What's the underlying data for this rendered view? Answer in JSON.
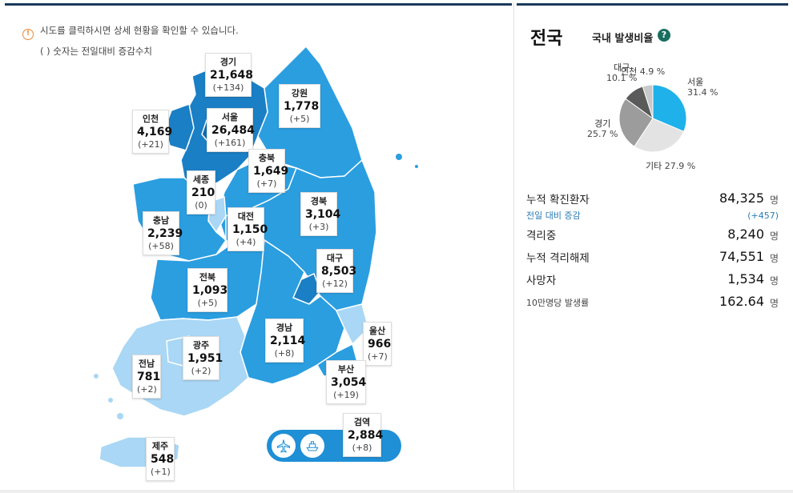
{
  "notice": {
    "line1": "시도를 클릭하시면 상세 현황을 확인할 수 있습니다.",
    "line2": "( ) 숫자는 전일대비 증감수치",
    "icon": "info-icon"
  },
  "regions": [
    {
      "id": "gyeonggi",
      "name": "경기",
      "count": "21,648",
      "diff": "(+134)"
    },
    {
      "id": "gangwon",
      "name": "강원",
      "count": "1,778",
      "diff": "(+5)"
    },
    {
      "id": "incheon",
      "name": "인천",
      "count": "4,169",
      "diff": "(+21)"
    },
    {
      "id": "seoul",
      "name": "서울",
      "count": "26,484",
      "diff": "(+161)"
    },
    {
      "id": "chungbuk",
      "name": "충북",
      "count": "1,649",
      "diff": "(+7)"
    },
    {
      "id": "sejong",
      "name": "세종",
      "count": "210",
      "diff": "(0)"
    },
    {
      "id": "chungnam",
      "name": "충남",
      "count": "2,239",
      "diff": "(+58)"
    },
    {
      "id": "daejeon",
      "name": "대전",
      "count": "1,150",
      "diff": "(+4)"
    },
    {
      "id": "gyeongbuk",
      "name": "경북",
      "count": "3,104",
      "diff": "(+3)"
    },
    {
      "id": "daegu",
      "name": "대구",
      "count": "8,503",
      "diff": "(+12)"
    },
    {
      "id": "jeonbuk",
      "name": "전북",
      "count": "1,093",
      "diff": "(+5)"
    },
    {
      "id": "ulsan",
      "name": "울산",
      "count": "966",
      "diff": "(+7)"
    },
    {
      "id": "gyeongnam",
      "name": "경남",
      "count": "2,114",
      "diff": "(+8)"
    },
    {
      "id": "gwangju",
      "name": "광주",
      "count": "1,951",
      "diff": "(+2)"
    },
    {
      "id": "jeonnam",
      "name": "전남",
      "count": "781",
      "diff": "(+2)"
    },
    {
      "id": "busan",
      "name": "부산",
      "count": "3,054",
      "diff": "(+19)"
    },
    {
      "id": "quarantine",
      "name": "검역",
      "count": "2,884",
      "diff": "(+8)"
    },
    {
      "id": "jeju",
      "name": "제주",
      "count": "548",
      "diff": "(+1)"
    }
  ],
  "quarantine_icons": [
    "airplane-icon",
    "ship-icon"
  ],
  "colors": {
    "dark": "#1a7fc4",
    "mid": "#2b9ee0",
    "light": "#a9d7f5",
    "pie_seoul": "#1fb1ea",
    "pie_etc": "#e3e3e3",
    "pie_gyeonggi": "#9c9c9c",
    "pie_daegu": "#5a5a5a",
    "pie_incheon": "#c8c8c8"
  },
  "panel": {
    "title": "전국",
    "subtitle": "국내 발생비율",
    "help_icon": "question-icon"
  },
  "chart_data": {
    "type": "pie",
    "title": "국내 발생비율",
    "labels": [
      "서울",
      "기타",
      "경기",
      "대구",
      "인천"
    ],
    "values": [
      31.4,
      27.9,
      25.7,
      10.1,
      4.9
    ],
    "display": [
      "31.4 %",
      "27.9 %",
      "25.7 %",
      "10.1 %",
      "4.9 %"
    ]
  },
  "stats": {
    "total": {
      "label": "누적 확진환자",
      "value": "84,325",
      "unit": "명"
    },
    "change": {
      "label": "전일 대비 증감",
      "value": "(+457)"
    },
    "isolating": {
      "label": "격리중",
      "value": "8,240",
      "unit": "명"
    },
    "released": {
      "label": "누적 격리해제",
      "value": "74,551",
      "unit": "명"
    },
    "deaths": {
      "label": "사망자",
      "value": "1,534",
      "unit": "명"
    },
    "rate": {
      "label": "10만명당 발생률",
      "value": "162.64",
      "unit": "명"
    }
  }
}
